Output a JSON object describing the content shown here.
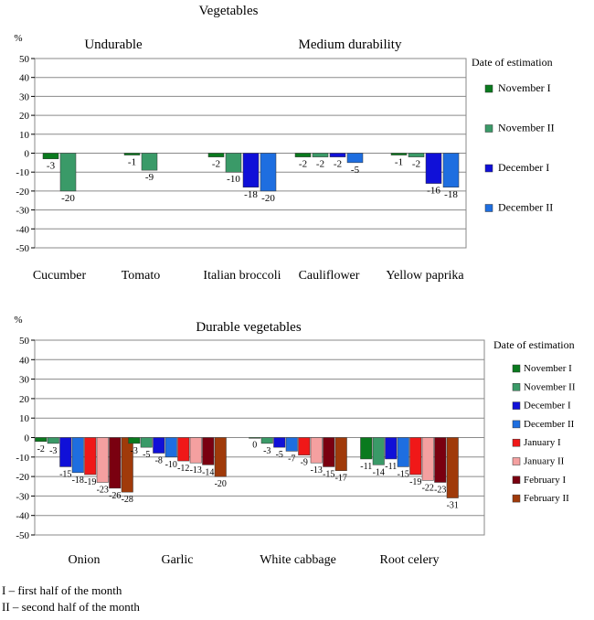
{
  "chart_data": [
    {
      "type": "bar",
      "title": "Vegetables",
      "ylabel": "%",
      "ylim": [
        -50,
        50
      ],
      "yticks": [
        50,
        40,
        30,
        20,
        10,
        0,
        -10,
        -20,
        -30,
        -40,
        -50
      ],
      "groups": [
        {
          "label": "Undurable",
          "categories": [
            "Cucumber",
            "Tomato"
          ]
        },
        {
          "label": "Medium durability",
          "categories": [
            "Italian broccoli",
            "Cauliflower",
            "Yellow paprika"
          ]
        }
      ],
      "categories": [
        "Cucumber",
        "Tomato",
        "Italian broccoli",
        "Cauliflower",
        "Yellow paprika"
      ],
      "legend_title": "Date of estimation",
      "legend_position": "right",
      "grid": true,
      "series": [
        {
          "name": "November I",
          "color": "#0a7a1e",
          "values": [
            -3,
            -1,
            -2,
            -2,
            -1
          ]
        },
        {
          "name": "November II",
          "color": "#3a9a68",
          "values": [
            -20,
            -9,
            -10,
            -2,
            -2
          ]
        },
        {
          "name": "December I",
          "color": "#1010d8",
          "values": [
            null,
            null,
            -18,
            -2,
            -16
          ]
        },
        {
          "name": "December II",
          "color": "#1e6ee0",
          "values": [
            null,
            null,
            -20,
            -5,
            -18
          ]
        }
      ],
      "point_labels": [
        [
          "-3",
          "-1",
          "-2",
          "-2",
          "-1"
        ],
        [
          "-20",
          "-9",
          "-10",
          "-2",
          "-2"
        ],
        [
          "",
          "",
          "-18",
          "-2",
          "-16"
        ],
        [
          "",
          "",
          "-20",
          "-5",
          "-18"
        ]
      ]
    },
    {
      "type": "bar",
      "title": "Durable vegetables",
      "ylabel": "%",
      "ylim": [
        -50,
        50
      ],
      "yticks": [
        50,
        40,
        30,
        20,
        10,
        0,
        -10,
        -20,
        -30,
        -40,
        -50
      ],
      "categories": [
        "Onion",
        "Garlic",
        "White cabbage",
        "Root celery"
      ],
      "legend_title": "Date of estimation",
      "legend_position": "right",
      "grid": true,
      "series": [
        {
          "name": "November I",
          "color": "#0a7a1e",
          "values": [
            -2,
            -3,
            0,
            -11
          ]
        },
        {
          "name": "November II",
          "color": "#3a9a68",
          "values": [
            -3,
            -5,
            -3,
            -14
          ]
        },
        {
          "name": "December I",
          "color": "#1010d8",
          "values": [
            -15,
            -8,
            -5,
            -11
          ]
        },
        {
          "name": "December II",
          "color": "#1e6ee0",
          "values": [
            -18,
            -10,
            -7,
            -15
          ]
        },
        {
          "name": "January I",
          "color": "#f01818",
          "values": [
            -19,
            -12,
            -9,
            -19
          ]
        },
        {
          "name": "January II",
          "color": "#f4a0a0",
          "values": [
            -23,
            -13,
            -13,
            -22
          ]
        },
        {
          "name": "February I",
          "color": "#7a0010",
          "values": [
            -26,
            -14,
            -15,
            -23
          ]
        },
        {
          "name": "February II",
          "color": "#a03a0a",
          "values": [
            -28,
            -20,
            -17,
            -31
          ]
        }
      ],
      "point_labels": [
        [
          "-2",
          "-3",
          "0",
          "-11"
        ],
        [
          "-3",
          "-5",
          "-3",
          "-14"
        ],
        [
          "-15",
          "-8",
          "-5",
          "-11"
        ],
        [
          "-18",
          "-10",
          "-7",
          "-15"
        ],
        [
          "-19",
          "-12",
          "-9",
          "-19"
        ],
        [
          "-23",
          "-13",
          "-13",
          "-22"
        ],
        [
          "-26",
          "-14",
          "-15",
          "-23"
        ],
        [
          "-28",
          "-20",
          "-17",
          "-31"
        ]
      ]
    }
  ],
  "footnotes": {
    "line1": "I – first half of the month",
    "line2": "II – second half of the month"
  }
}
